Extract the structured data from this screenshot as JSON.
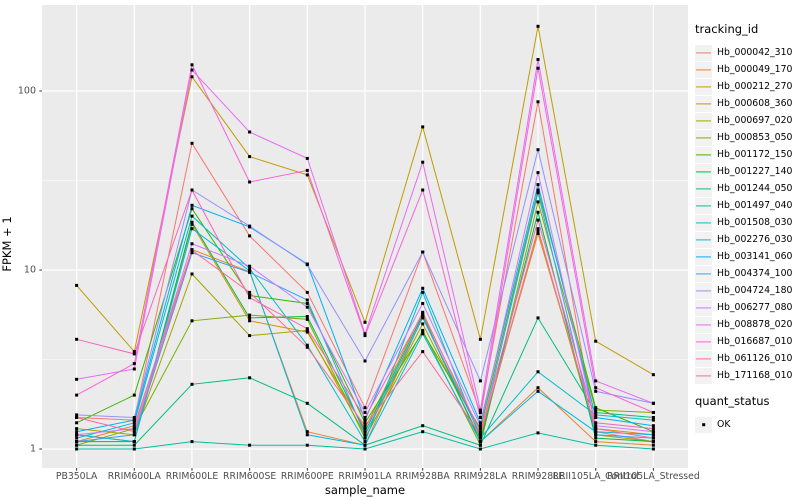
{
  "chart_data": {
    "type": "line",
    "title": "",
    "xlabel": "sample_name",
    "ylabel": "FPKM + 1",
    "y_scale": "log10",
    "ylim": [
      0.8,
      300
    ],
    "y_ticks": [
      1,
      10,
      100
    ],
    "y_tick_labels": [
      "1",
      "10",
      "100"
    ],
    "y_minor_ticks": [
      3.162,
      31.62
    ],
    "grid": "major+minor, white on grey panel",
    "legend_position": "right",
    "legend_title": "tracking_id",
    "legend2_title": "quant_status",
    "legend2_items": [
      {
        "label": "OK",
        "marker": "black-square"
      }
    ],
    "point_marker": "black-square",
    "panel_bg": "#EBEBEB",
    "grid_color": "#FFFFFF",
    "x_categories": [
      "PB350LA",
      "RRIM600LA",
      "RRIM600LE",
      "RRIM600SE",
      "RRIM600PE",
      "RRIM901LA",
      "RRIM928BA",
      "RRIM928LA",
      "RRIM928LE",
      "RRII105LA_Control",
      "RRII105LA_Stressed"
    ],
    "series": [
      {
        "name": "Hb_000042_310",
        "color": "#F8766D",
        "values": [
          1.5,
          1.45,
          51,
          15.5,
          7.5,
          1.7,
          12.6,
          1.6,
          87,
          1.25,
          1.1
        ]
      },
      {
        "name": "Hb_000049_170",
        "color": "#EA8331",
        "values": [
          1.1,
          1.35,
          13,
          9.8,
          1.25,
          1.05,
          5.5,
          1.1,
          2.2,
          1.1,
          1.05
        ]
      },
      {
        "name": "Hb_000212_270",
        "color": "#D89000",
        "values": [
          1.2,
          1.1,
          18,
          5.2,
          4.5,
          1.3,
          5.8,
          1.2,
          16,
          1.3,
          1.2
        ]
      },
      {
        "name": "Hb_000608_360",
        "color": "#C09B00",
        "values": [
          8.2,
          3.5,
          120,
          43,
          34,
          5.1,
          63,
          4.1,
          230,
          4.0,
          2.6
        ]
      },
      {
        "name": "Hb_000697_020",
        "color": "#A3A500",
        "values": [
          1.3,
          1.2,
          9.5,
          4.3,
          4.6,
          1.2,
          5.0,
          1.15,
          17,
          1.2,
          1.1
        ]
      },
      {
        "name": "Hb_000853_050",
        "color": "#7CAE00",
        "values": [
          1.05,
          1.3,
          5.2,
          5.6,
          5.3,
          1.15,
          4.6,
          1.05,
          24,
          1.65,
          1.6
        ]
      },
      {
        "name": "Hb_001172_150",
        "color": "#39B600",
        "values": [
          1.4,
          2.0,
          22,
          7.2,
          6.5,
          1.4,
          4.5,
          1.3,
          28,
          1.7,
          1.25
        ]
      },
      {
        "name": "Hb_001227_140",
        "color": "#00BB4E",
        "values": [
          1.1,
          1.1,
          18.5,
          5.4,
          5.5,
          1.25,
          5.6,
          1.1,
          21,
          1.15,
          1.1
        ]
      },
      {
        "name": "Hb_001244_050",
        "color": "#00BF7D",
        "values": [
          1.05,
          1.05,
          2.3,
          2.5,
          1.8,
          1.05,
          1.35,
          1.05,
          5.4,
          1.6,
          1.5
        ]
      },
      {
        "name": "Hb_001497_040",
        "color": "#00C1A3",
        "values": [
          1.0,
          1.0,
          1.1,
          1.05,
          1.05,
          1.0,
          1.25,
          1.0,
          1.23,
          1.05,
          1.0
        ]
      },
      {
        "name": "Hb_001508_030",
        "color": "#00BFC4",
        "values": [
          1.15,
          1.4,
          20,
          10.2,
          3.8,
          1.1,
          7.5,
          1.15,
          2.7,
          1.55,
          1.45
        ]
      },
      {
        "name": "Hb_002276_030",
        "color": "#00BAE0",
        "values": [
          1.2,
          1.1,
          17,
          9.9,
          1.2,
          1.05,
          4.4,
          1.1,
          2.1,
          1.25,
          1.2
        ]
      },
      {
        "name": "Hb_003141_060",
        "color": "#00B0F6",
        "values": [
          1.25,
          1.45,
          23,
          17.4,
          10.8,
          1.45,
          7.9,
          1.4,
          30,
          1.5,
          1.35
        ]
      },
      {
        "name": "Hb_004374_100",
        "color": "#35A2FF",
        "values": [
          1.1,
          1.2,
          12.5,
          9.7,
          6.8,
          1.2,
          5.4,
          1.2,
          27,
          1.2,
          1.15
        ]
      },
      {
        "name": "Hb_004724_180",
        "color": "#9590FF",
        "values": [
          1.55,
          1.5,
          28,
          17.6,
          10.7,
          3.1,
          12.6,
          2.4,
          47,
          2.1,
          1.8
        ]
      },
      {
        "name": "Hb_006277_080",
        "color": "#C77CFF",
        "values": [
          1.2,
          1.3,
          14,
          10.5,
          6.2,
          1.6,
          6.5,
          1.35,
          35,
          1.35,
          1.25
        ]
      },
      {
        "name": "Hb_008878_020",
        "color": "#E76BF3",
        "values": [
          2.45,
          2.8,
          131,
          59,
          42,
          4.4,
          40,
          1.65,
          150,
          2.4,
          1.8
        ]
      },
      {
        "name": "Hb_016687_010",
        "color": "#FA62DB",
        "values": [
          2.0,
          3.0,
          140,
          31,
          36,
          4.3,
          28,
          1.5,
          134,
          2.2,
          1.6
        ]
      },
      {
        "name": "Hb_061126_010",
        "color": "#FF62BC",
        "values": [
          4.1,
          3.4,
          28,
          7.0,
          4.7,
          1.5,
          5.7,
          1.25,
          19,
          1.4,
          1.3
        ]
      },
      {
        "name": "Hb_171168_010",
        "color": "#FF6A98",
        "values": [
          1.5,
          1.25,
          12.9,
          7.5,
          3.7,
          1.35,
          3.5,
          1.2,
          16.5,
          1.3,
          1.15
        ]
      }
    ]
  }
}
